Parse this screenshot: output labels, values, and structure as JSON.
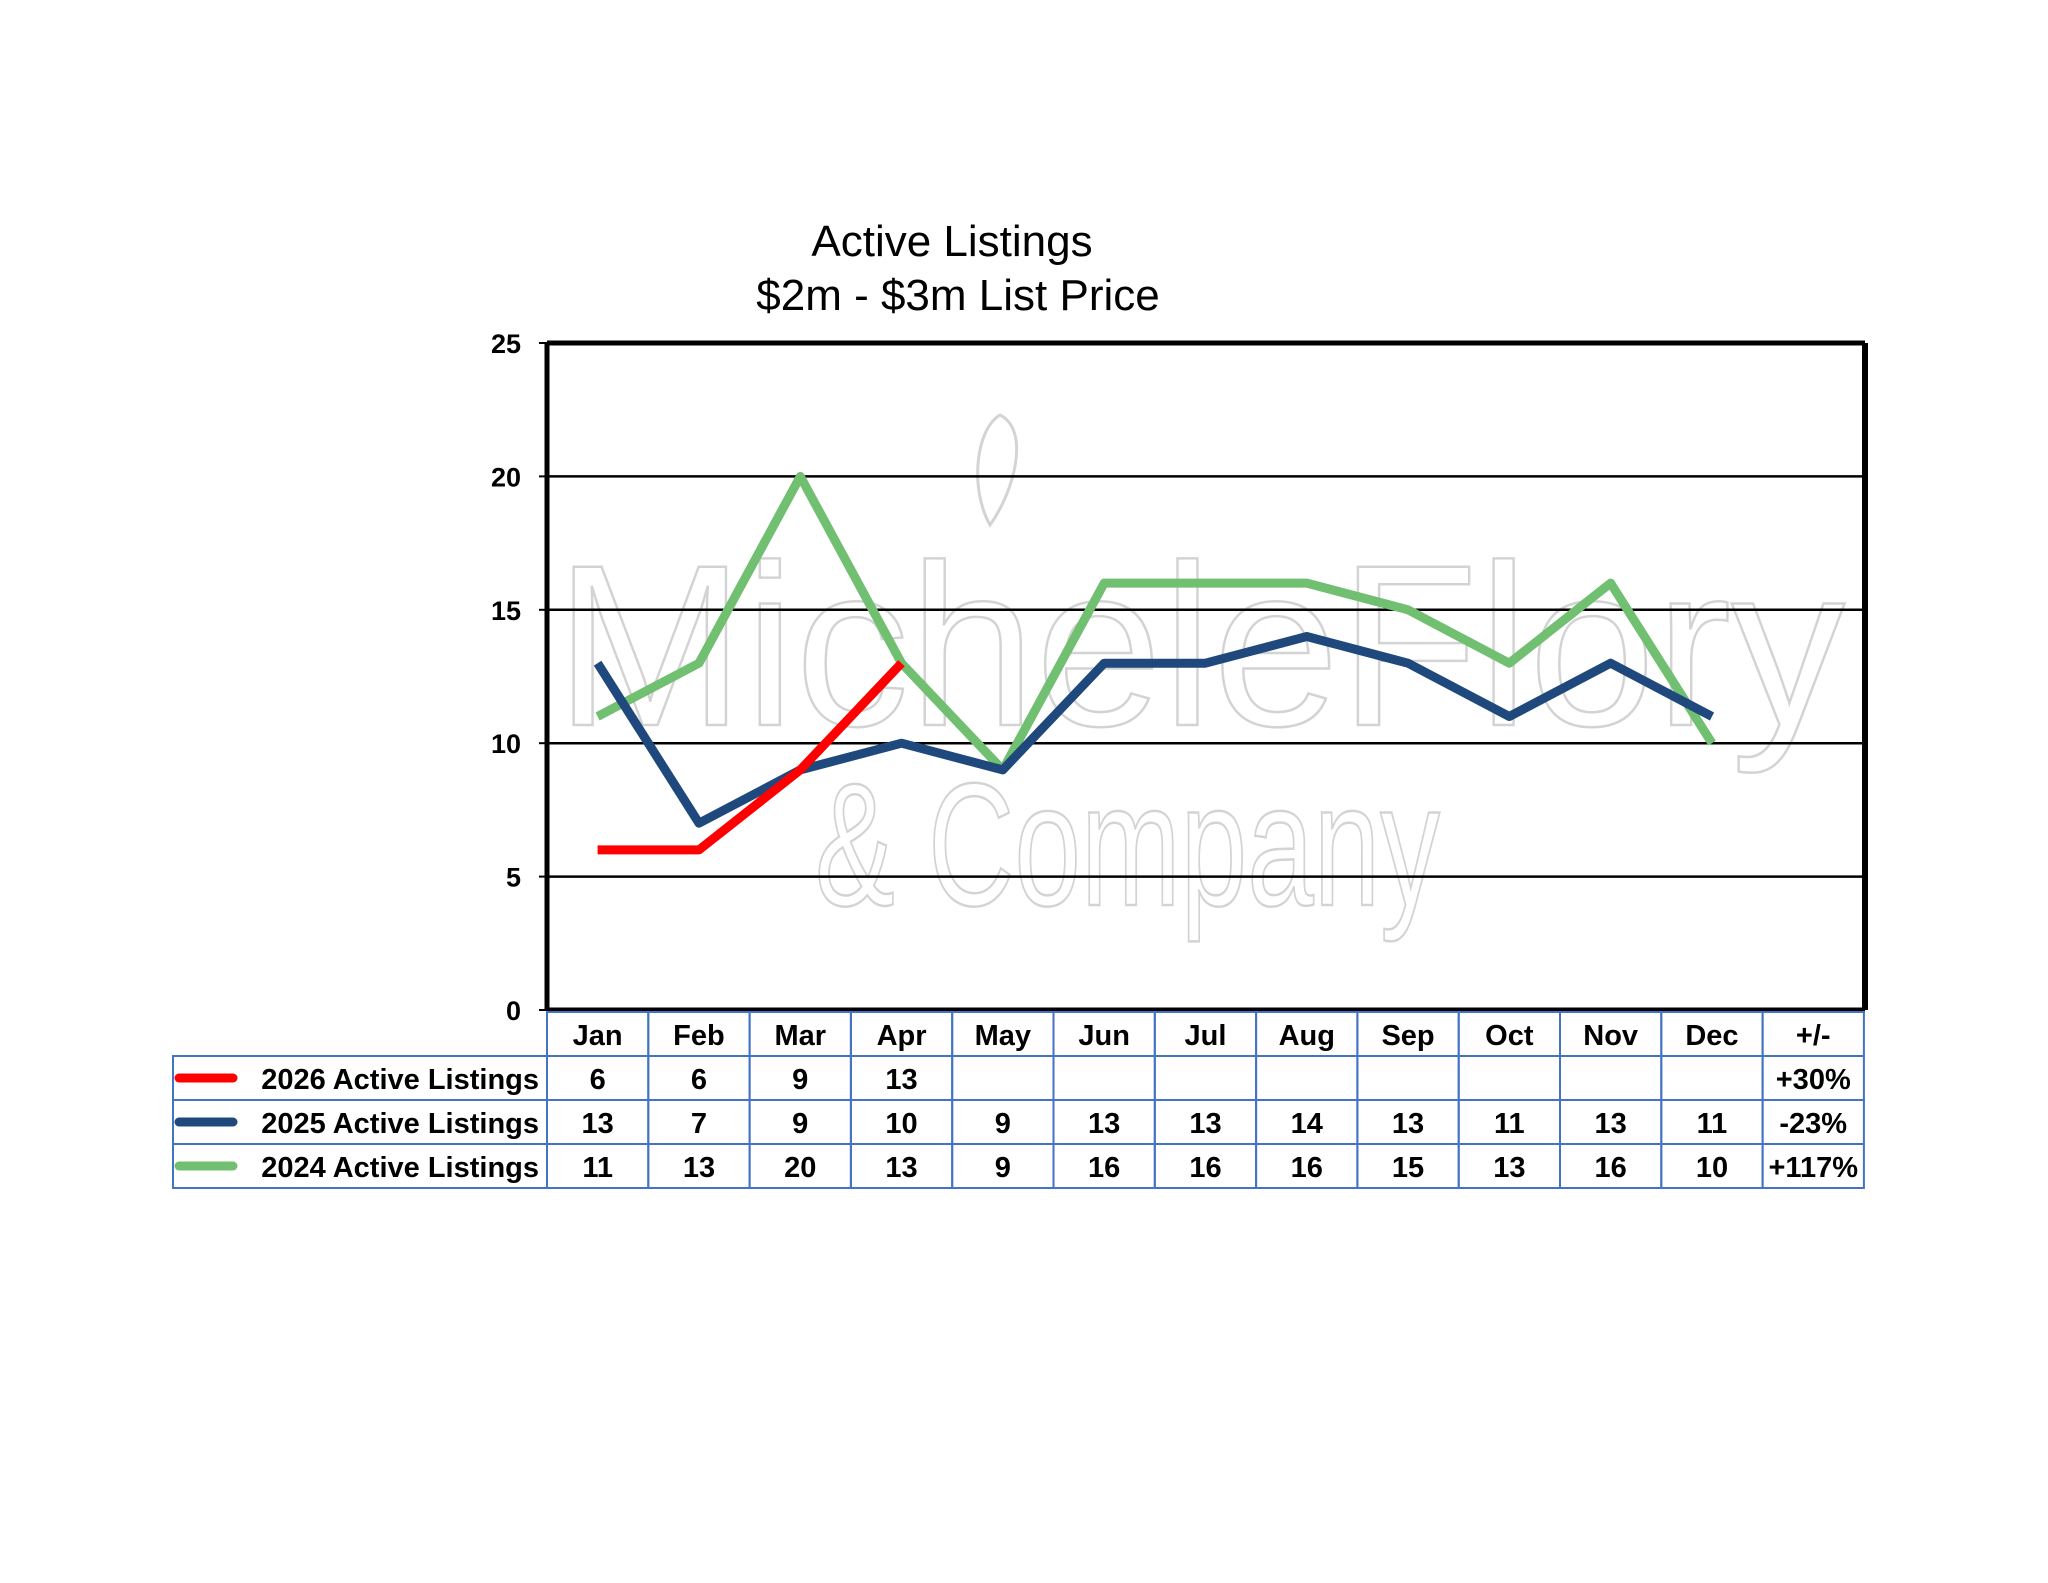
{
  "chart_data": {
    "type": "line",
    "title": "Active Listings",
    "subtitle": "$2m - $3m List Price",
    "categories": [
      "Jan",
      "Feb",
      "Mar",
      "Apr",
      "May",
      "Jun",
      "Jul",
      "Aug",
      "Sep",
      "Oct",
      "Nov",
      "Dec"
    ],
    "change_header": "+/-",
    "ylim": [
      0,
      25
    ],
    "yticks": [
      0,
      5,
      10,
      15,
      20,
      25
    ],
    "grid": true,
    "series": [
      {
        "name": "2026 Active Listings",
        "color": "#ff0000",
        "values": [
          6,
          6,
          9,
          13,
          null,
          null,
          null,
          null,
          null,
          null,
          null,
          null
        ],
        "change": "+30%"
      },
      {
        "name": "2025 Active Listings",
        "color": "#1f497d",
        "values": [
          13,
          7,
          9,
          10,
          9,
          13,
          13,
          14,
          13,
          11,
          13,
          11
        ],
        "change": "-23%"
      },
      {
        "name": "2024 Active Listings",
        "color": "#71bf71",
        "values": [
          11,
          13,
          20,
          13,
          9,
          16,
          16,
          16,
          15,
          13,
          16,
          10
        ],
        "change": "+117%"
      }
    ],
    "watermark": [
      "MicheleFlory",
      "& Company"
    ]
  }
}
